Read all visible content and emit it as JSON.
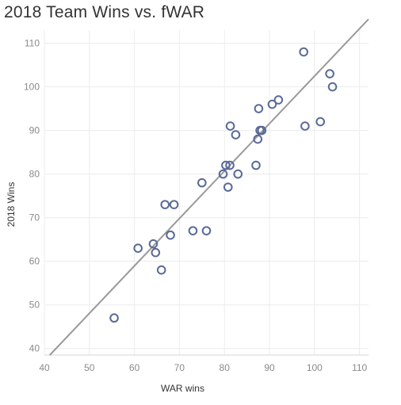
{
  "chart_data": {
    "type": "scatter",
    "title": "2018 Team Wins vs. fWAR",
    "xlabel": "WAR wins",
    "ylabel": "2018 Wins",
    "xlim": [
      40,
      112
    ],
    "ylim": [
      38.5,
      113
    ],
    "xticks": [
      40,
      50,
      60,
      70,
      80,
      90,
      100,
      110
    ],
    "yticks": [
      40,
      50,
      60,
      70,
      80,
      90,
      100,
      110
    ],
    "grid": true,
    "marker": "hollow-circle",
    "marker_color": "#5a6a96",
    "trend_line": {
      "color": "#9a9a9a",
      "from": [
        41.2,
        38.5
      ],
      "to": [
        112,
        115.5
      ]
    },
    "points": [
      {
        "x": 55.5,
        "y": 47
      },
      {
        "x": 60.8,
        "y": 63
      },
      {
        "x": 64.2,
        "y": 64
      },
      {
        "x": 64.7,
        "y": 62
      },
      {
        "x": 66.0,
        "y": 58
      },
      {
        "x": 66.8,
        "y": 73
      },
      {
        "x": 68.0,
        "y": 66
      },
      {
        "x": 68.8,
        "y": 73
      },
      {
        "x": 73.0,
        "y": 67
      },
      {
        "x": 75.0,
        "y": 78
      },
      {
        "x": 76.0,
        "y": 67
      },
      {
        "x": 79.7,
        "y": 80
      },
      {
        "x": 80.3,
        "y": 82
      },
      {
        "x": 80.8,
        "y": 77
      },
      {
        "x": 81.2,
        "y": 82
      },
      {
        "x": 81.3,
        "y": 91
      },
      {
        "x": 82.5,
        "y": 89
      },
      {
        "x": 83.0,
        "y": 80
      },
      {
        "x": 87.0,
        "y": 82
      },
      {
        "x": 87.4,
        "y": 88
      },
      {
        "x": 87.6,
        "y": 95
      },
      {
        "x": 87.9,
        "y": 90
      },
      {
        "x": 88.3,
        "y": 90
      },
      {
        "x": 90.6,
        "y": 96
      },
      {
        "x": 92.0,
        "y": 97
      },
      {
        "x": 97.6,
        "y": 108
      },
      {
        "x": 97.9,
        "y": 91
      },
      {
        "x": 101.3,
        "y": 92
      },
      {
        "x": 103.4,
        "y": 103
      },
      {
        "x": 104.0,
        "y": 100
      }
    ]
  }
}
